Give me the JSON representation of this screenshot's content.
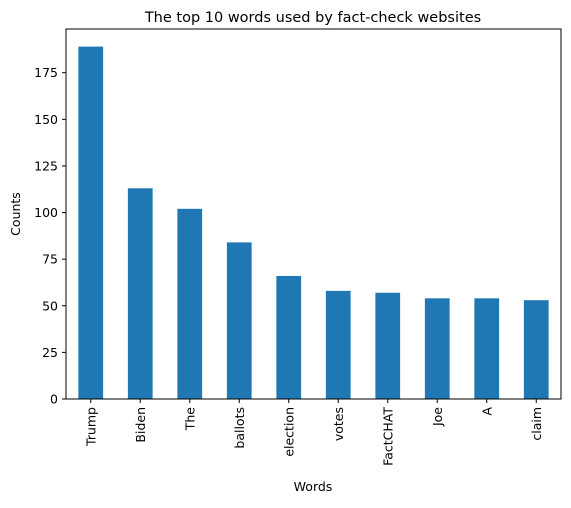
{
  "chart_data": {
    "type": "bar",
    "title": "The top 10 words used by fact-check websites",
    "xlabel": "Words",
    "ylabel": "Counts",
    "categories": [
      "Trump",
      "Biden",
      "The",
      "ballots",
      "election",
      "votes",
      "FactCHAT",
      "Joe",
      "A",
      "claim"
    ],
    "values": [
      189,
      113,
      102,
      84,
      66,
      58,
      57,
      54,
      54,
      53
    ],
    "ylim": [
      0,
      198.45
    ],
    "yticks": [
      0,
      25,
      50,
      75,
      100,
      125,
      150,
      175
    ],
    "ytick_labels": [
      "0",
      "25",
      "50",
      "75",
      "100",
      "125",
      "150",
      "175"
    ],
    "bar_color": "#1f77b4",
    "grid": false,
    "legend": "none"
  }
}
